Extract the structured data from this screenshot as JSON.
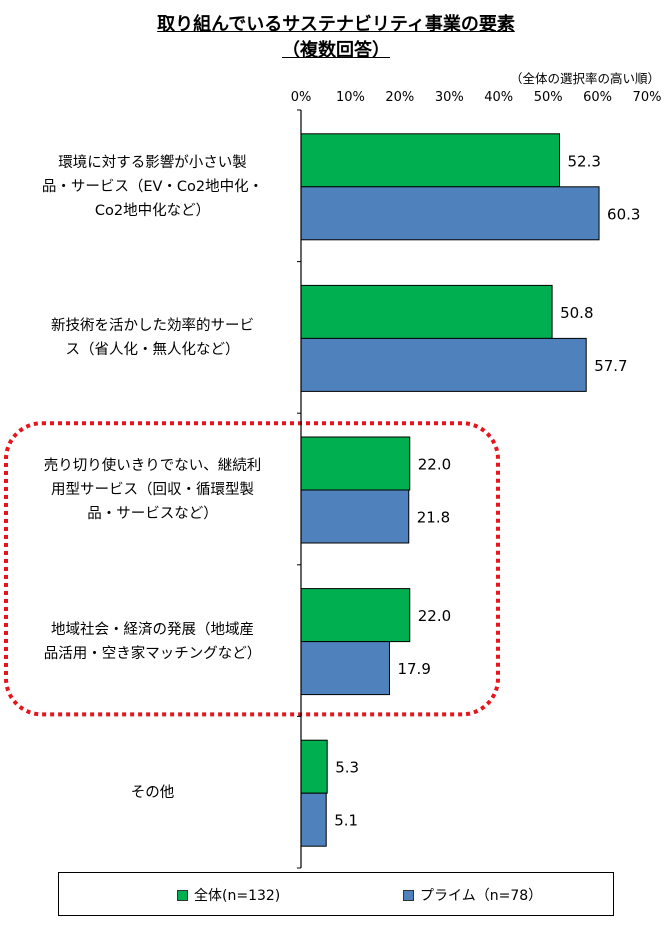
{
  "title_line1": "取り組んでいるサステナビリティ事業の要素",
  "title_line2": "（複数回答）",
  "sort_note": "（全体の選択率の高い順）",
  "chart_data": {
    "type": "bar",
    "orientation": "horizontal",
    "categories": [
      "環境に対する影響が小さい製品・サービス（EV・Co2地中化・Co2地中化など）",
      "新技術を活かした効率的サービス（省人化・無人化など）",
      "売り切り使いきりでない、継続利用型サービス（回収・循環型製品・サービスなど）",
      "地域社会・経済の発展（地域産品活用・空き家マッチングなど）",
      "その他"
    ],
    "category_lines": [
      [
        "環境に対する影響が小さい製",
        "品・サービス（EV・Co2地中化・",
        "Co2地中化など）"
      ],
      [
        "新技術を活かした効率的サービ",
        "ス（省人化・無人化など）"
      ],
      [
        "売り切り使いきりでない、継続利",
        "用型サービス（回収・循環型製",
        "品・サービスなど）"
      ],
      [
        "地域社会・経済の発展（地域産",
        "品活用・空き家マッチングなど）"
      ],
      [
        "その他"
      ]
    ],
    "series": [
      {
        "name": "全体(n=132)",
        "color": "#00b050",
        "values": [
          52.3,
          50.8,
          22.0,
          22.0,
          5.3
        ]
      },
      {
        "name": "プライム（n=78）",
        "color": "#4f81bd",
        "values": [
          60.3,
          57.7,
          21.8,
          17.9,
          5.1
        ]
      }
    ],
    "value_labels": [
      [
        "52.3",
        "60.3"
      ],
      [
        "50.8",
        "57.7"
      ],
      [
        "22.0",
        "21.8"
      ],
      [
        "22.0",
        "17.9"
      ],
      [
        "5.3",
        "5.1"
      ]
    ],
    "xlim": [
      0,
      70
    ],
    "xticks": [
      "0%",
      "10%",
      "20%",
      "30%",
      "40%",
      "50%",
      "60%",
      "70%"
    ],
    "highlight": {
      "categories": [
        2,
        3
      ],
      "style": "red dotted rounded box"
    },
    "legend_position": "bottom"
  }
}
